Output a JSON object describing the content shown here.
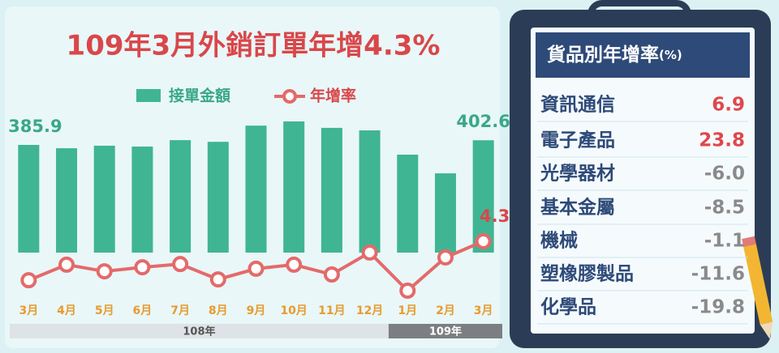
{
  "chart_data": {
    "type": "bar-line",
    "title": "109年3月外銷訂單年增4.3%",
    "categories": [
      "3月",
      "4月",
      "5月",
      "6月",
      "7月",
      "8月",
      "9月",
      "10月",
      "11月",
      "12月",
      "1月",
      "2月",
      "3月"
    ],
    "groups": [
      {
        "label": "108年",
        "count": 10
      },
      {
        "label": "109年",
        "count": 3
      }
    ],
    "series": [
      {
        "name": "接單金額",
        "type": "bar",
        "color": "#3fb593",
        "values": [
          385.9,
          374,
          383,
          380,
          403,
          397,
          455,
          470,
          447,
          438,
          351,
          284,
          402.6
        ],
        "value_labels": [
          "385.9",
          null,
          null,
          null,
          null,
          null,
          null,
          null,
          null,
          null,
          null,
          null,
          "402.6"
        ]
      },
      {
        "name": "年增率",
        "type": "line",
        "color": "#e46a6a",
        "values": [
          -9.2,
          -3.8,
          -6.1,
          -4.7,
          -3.6,
          -8.9,
          -5.2,
          -3.8,
          -7.2,
          0.4,
          -12.8,
          -1.3,
          4.3
        ],
        "value_labels": [
          null,
          null,
          null,
          null,
          null,
          null,
          null,
          null,
          null,
          null,
          null,
          null,
          "4.3"
        ]
      }
    ]
  },
  "table": {
    "title": "貨品別年增率",
    "unit": "(%)",
    "rows": [
      {
        "name": "資訊通信",
        "value": 6.9,
        "label": "6.9"
      },
      {
        "name": "電子產品",
        "value": 23.8,
        "label": "23.8"
      },
      {
        "name": "光學器材",
        "value": -6,
        "label": "-6.0"
      },
      {
        "name": "基本金屬",
        "value": -8.5,
        "label": "-8.5"
      },
      {
        "name": "機械",
        "value": -1.1,
        "label": "-1.1"
      },
      {
        "name": "塑橡膠製品",
        "value": -11.6,
        "label": "-11.6"
      },
      {
        "name": "化學品",
        "value": -19.8,
        "label": "-19.8"
      }
    ]
  }
}
